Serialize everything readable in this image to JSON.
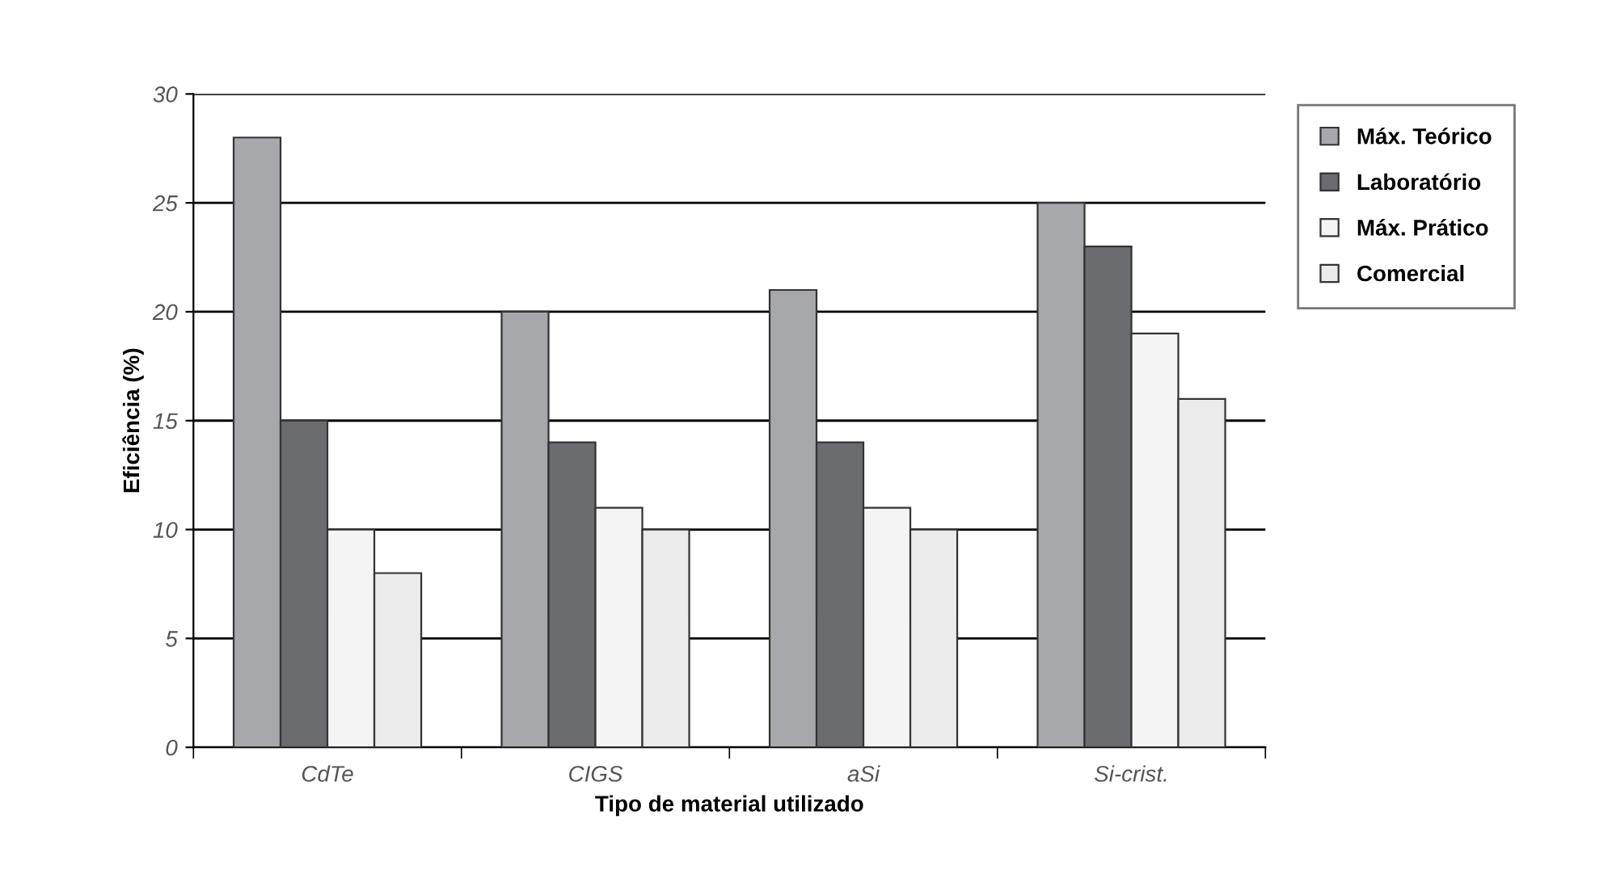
{
  "chart_data": {
    "type": "bar",
    "xlabel": "Tipo de material utilizado",
    "ylabel": "Eficiência (%)",
    "categories": [
      "CdTe",
      "CIGS",
      "aSi",
      "Si-crist."
    ],
    "series": [
      {
        "name": "Máx. Teórico",
        "color": "#a7a8ab",
        "values": [
          28,
          20,
          21,
          25
        ]
      },
      {
        "name": "Laboratório",
        "color": "#6b6c70",
        "values": [
          15,
          14,
          14,
          23
        ]
      },
      {
        "name": "Máx. Prático",
        "color": "#f4f4f4",
        "values": [
          10,
          11,
          11,
          19
        ]
      },
      {
        "name": "Comercial",
        "color": "#ebebeb",
        "values": [
          8,
          10,
          10,
          16
        ]
      }
    ],
    "ylim": [
      0,
      30
    ],
    "yticks": [
      0,
      5,
      10,
      15,
      20,
      25,
      30
    ],
    "grid": "y",
    "legend": "right"
  }
}
